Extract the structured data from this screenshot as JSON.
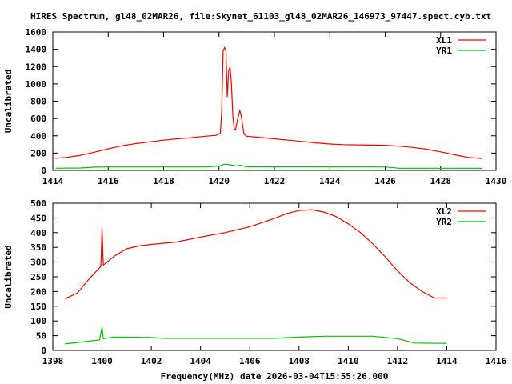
{
  "chart_data": [
    {
      "type": "line",
      "title": "HIRES Spectrum, gl48_02MAR26, file:Skynet_61103_gl48_02MAR26_146973_97447.spect.cyb.txt",
      "xlabel": "",
      "ylabel": "Uncalibrated",
      "xlim": [
        1414,
        1430
      ],
      "ylim": [
        0,
        1600
      ],
      "xticks": [
        1414,
        1416,
        1418,
        1420,
        1422,
        1424,
        1426,
        1428,
        1430
      ],
      "yticks": [
        0,
        200,
        400,
        600,
        800,
        1000,
        1200,
        1400,
        1600
      ],
      "legend": "top-right",
      "series": [
        {
          "name": "XL1",
          "color": "#ff0000",
          "points": [
            [
              1414.1,
              140
            ],
            [
              1414.5,
              150
            ],
            [
              1415,
              175
            ],
            [
              1415.5,
              210
            ],
            [
              1416,
              250
            ],
            [
              1416.5,
              285
            ],
            [
              1417,
              310
            ],
            [
              1417.5,
              330
            ],
            [
              1418,
              350
            ],
            [
              1418.5,
              365
            ],
            [
              1419,
              378
            ],
            [
              1419.5,
              395
            ],
            [
              1419.9,
              405
            ],
            [
              1420.05,
              430
            ],
            [
              1420.1,
              700
            ],
            [
              1420.15,
              1380
            ],
            [
              1420.2,
              1420
            ],
            [
              1420.25,
              1380
            ],
            [
              1420.3,
              850
            ],
            [
              1420.35,
              1160
            ],
            [
              1420.4,
              1190
            ],
            [
              1420.45,
              1000
            ],
            [
              1420.5,
              620
            ],
            [
              1420.55,
              480
            ],
            [
              1420.6,
              470
            ],
            [
              1420.65,
              560
            ],
            [
              1420.75,
              690
            ],
            [
              1420.8,
              640
            ],
            [
              1420.9,
              420
            ],
            [
              1421,
              395
            ],
            [
              1421.5,
              380
            ],
            [
              1422,
              365
            ],
            [
              1422.5,
              350
            ],
            [
              1423,
              335
            ],
            [
              1423.5,
              318
            ],
            [
              1424,
              305
            ],
            [
              1424.5,
              298
            ],
            [
              1425,
              295
            ],
            [
              1425.5,
              292
            ],
            [
              1426,
              290
            ],
            [
              1426.5,
              280
            ],
            [
              1427,
              265
            ],
            [
              1427.5,
              245
            ],
            [
              1428,
              215
            ],
            [
              1428.5,
              180
            ],
            [
              1429,
              150
            ],
            [
              1429.5,
              138
            ]
          ]
        },
        {
          "name": "YR1",
          "color": "#00c000",
          "points": [
            [
              1414.1,
              25
            ],
            [
              1415,
              28
            ],
            [
              1415.5,
              38
            ],
            [
              1416,
              40
            ],
            [
              1419.5,
              40
            ],
            [
              1420,
              50
            ],
            [
              1420.2,
              72
            ],
            [
              1420.4,
              65
            ],
            [
              1420.6,
              52
            ],
            [
              1420.8,
              58
            ],
            [
              1421,
              42
            ],
            [
              1426,
              40
            ],
            [
              1426.5,
              25
            ],
            [
              1429.5,
              25
            ]
          ]
        }
      ]
    },
    {
      "type": "line",
      "title": "",
      "xlabel": "Frequency(MHz) date 2026-03-04T15:55:26.000",
      "ylabel": "Uncalibrated",
      "xlim": [
        1398,
        1416
      ],
      "ylim": [
        0,
        500
      ],
      "xticks": [
        1398,
        1400,
        1402,
        1404,
        1406,
        1408,
        1410,
        1412,
        1414,
        1416
      ],
      "yticks": [
        0,
        50,
        100,
        150,
        200,
        250,
        300,
        350,
        400,
        450,
        500
      ],
      "legend": "top-right",
      "series": [
        {
          "name": "XL2",
          "color": "#ff0000",
          "points": [
            [
              1398.5,
              175
            ],
            [
              1399,
              195
            ],
            [
              1399.5,
              245
            ],
            [
              1399.95,
              285
            ],
            [
              1400,
              415
            ],
            [
              1400.05,
              290
            ],
            [
              1400.5,
              320
            ],
            [
              1401,
              345
            ],
            [
              1401.5,
              355
            ],
            [
              1402,
              360
            ],
            [
              1403,
              368
            ],
            [
              1404,
              385
            ],
            [
              1405,
              400
            ],
            [
              1406,
              420
            ],
            [
              1407,
              448
            ],
            [
              1407.5,
              465
            ],
            [
              1408,
              475
            ],
            [
              1408.5,
              478
            ],
            [
              1409,
              470
            ],
            [
              1409.5,
              455
            ],
            [
              1410,
              430
            ],
            [
              1410.5,
              400
            ],
            [
              1411,
              362
            ],
            [
              1411.5,
              318
            ],
            [
              1412,
              270
            ],
            [
              1412.5,
              230
            ],
            [
              1413,
              200
            ],
            [
              1413.5,
              178
            ],
            [
              1414,
              178
            ]
          ]
        },
        {
          "name": "YR2",
          "color": "#00c000",
          "points": [
            [
              1398.5,
              22
            ],
            [
              1399,
              27
            ],
            [
              1399.9,
              36
            ],
            [
              1400,
              80
            ],
            [
              1400.05,
              40
            ],
            [
              1400.5,
              45
            ],
            [
              1402,
              44
            ],
            [
              1402.5,
              41
            ],
            [
              1407,
              41
            ],
            [
              1408,
              45
            ],
            [
              1409,
              48
            ],
            [
              1411,
              48
            ],
            [
              1412,
              40
            ],
            [
              1412.7,
              25
            ],
            [
              1414,
              24
            ]
          ]
        }
      ]
    }
  ]
}
